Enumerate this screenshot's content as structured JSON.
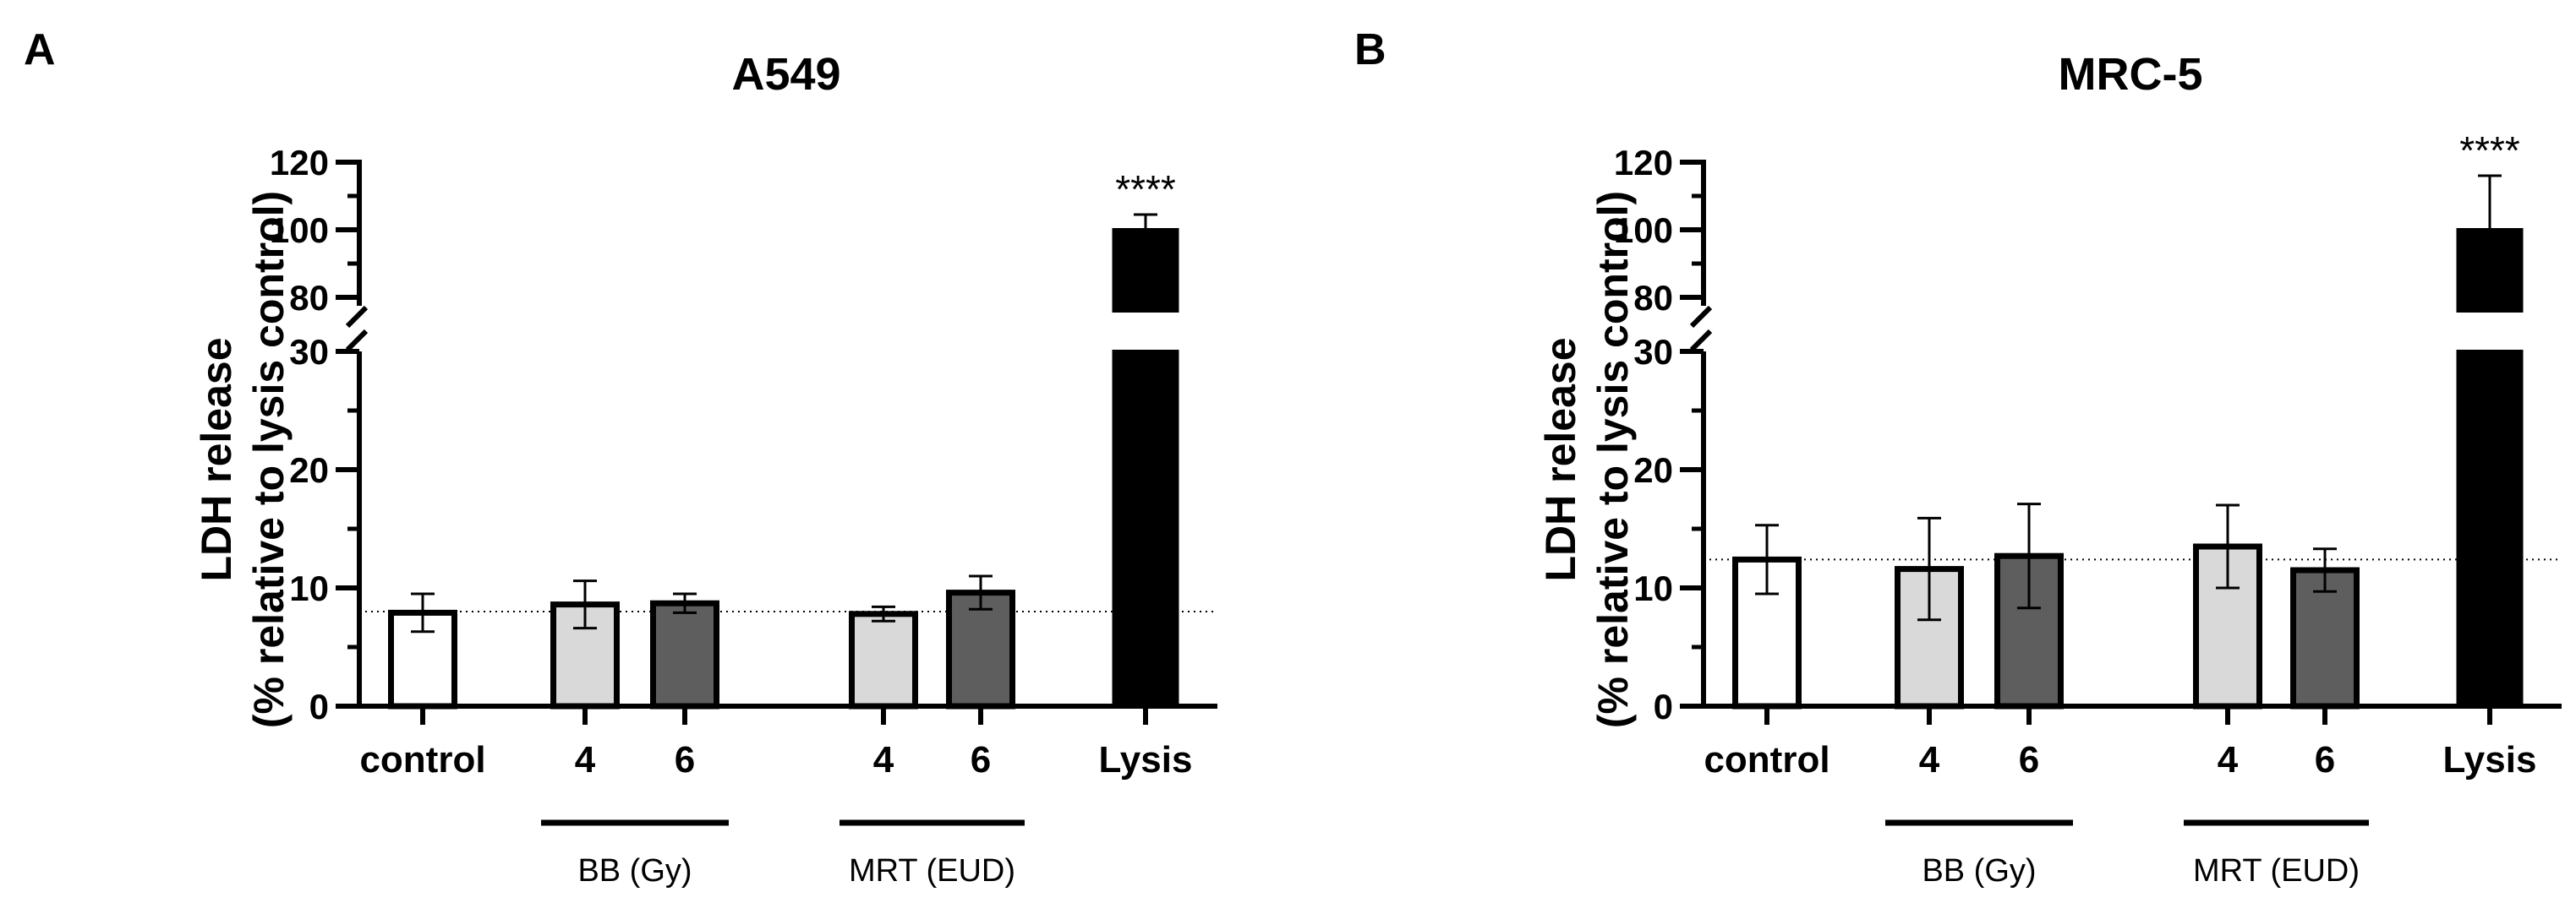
{
  "chart_data": [
    {
      "type": "bar",
      "panel": "A",
      "title": "A549",
      "ylabel": [
        "LDH release",
        "(% relative to lysis control)"
      ],
      "categories": [
        "control",
        "4",
        "6",
        "4",
        "6",
        "Lysis"
      ],
      "groups": [
        {
          "label": "BB (Gy)",
          "members": [
            1,
            2
          ]
        },
        {
          "label": "MRT (EUD)",
          "members": [
            3,
            4
          ]
        }
      ],
      "values": [
        7.9,
        8.6,
        8.7,
        7.8,
        9.6,
        100
      ],
      "errors": [
        1.6,
        2.0,
        0.8,
        0.6,
        1.4,
        4.5
      ],
      "fill_colors": [
        "#ffffff",
        "#d9d9d9",
        "#5e5e5e",
        "#d9d9d9",
        "#5e5e5e",
        "#000000"
      ],
      "significance": [
        {
          "category_index": 5,
          "label": "****"
        }
      ],
      "reference_line": 8.0,
      "y_axis_break": {
        "lower_range": [
          0,
          30
        ],
        "upper_range": [
          80,
          120
        ]
      },
      "yticks_lower": [
        0,
        10,
        20,
        30
      ],
      "yticks_upper": [
        80,
        100,
        120
      ]
    },
    {
      "type": "bar",
      "panel": "B",
      "title": "MRC-5",
      "ylabel": [
        "LDH release",
        "(% relative to lysis control)"
      ],
      "categories": [
        "control",
        "4",
        "6",
        "4",
        "6",
        "Lysis"
      ],
      "groups": [
        {
          "label": "BB (Gy)",
          "members": [
            1,
            2
          ]
        },
        {
          "label": "MRT (EUD)",
          "members": [
            3,
            4
          ]
        }
      ],
      "values": [
        12.4,
        11.6,
        12.7,
        13.5,
        11.5,
        100
      ],
      "errors": [
        2.9,
        4.3,
        4.4,
        3.5,
        1.8,
        16
      ],
      "fill_colors": [
        "#ffffff",
        "#d9d9d9",
        "#5e5e5e",
        "#d9d9d9",
        "#5e5e5e",
        "#000000"
      ],
      "significance": [
        {
          "category_index": 5,
          "label": "****"
        }
      ],
      "reference_line": 12.4,
      "y_axis_break": {
        "lower_range": [
          0,
          30
        ],
        "upper_range": [
          80,
          120
        ]
      },
      "yticks_lower": [
        0,
        10,
        20,
        30
      ],
      "yticks_upper": [
        80,
        100,
        120
      ]
    }
  ]
}
